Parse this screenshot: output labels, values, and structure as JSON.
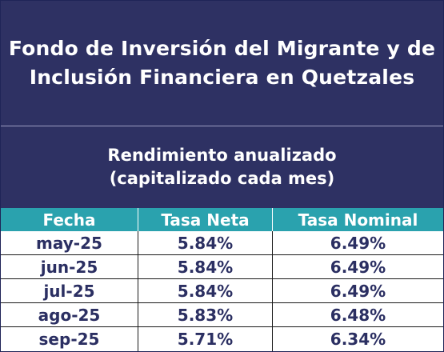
{
  "title_lines": [
    "Fondo de Inversión del Migrante y de",
    "Inclusión Financiera en Quetzales"
  ],
  "subtitle_lines": [
    "Rendimiento anualizado",
    "(capitalizado cada mes)"
  ],
  "table": {
    "headers": [
      "Fecha",
      "Tasa Neta",
      "Tasa Nominal"
    ],
    "rows": [
      [
        "may-25",
        "5.84%",
        "6.49%"
      ],
      [
        "jun-25",
        "5.84%",
        "6.49%"
      ],
      [
        "jul-25",
        "5.84%",
        "6.49%"
      ],
      [
        "ago-25",
        "5.83%",
        "6.48%"
      ],
      [
        "sep-25",
        "5.71%",
        "6.34%"
      ]
    ]
  },
  "colors": {
    "header_bg": "#2e3163",
    "table_header_bg": "#2aa2ae",
    "cell_text": "#2b2f62"
  }
}
